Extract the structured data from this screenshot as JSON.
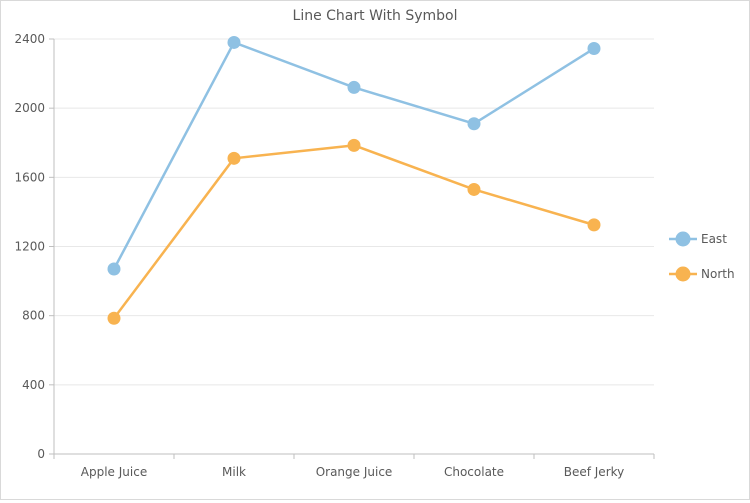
{
  "chart_data": {
    "type": "line",
    "title": "Line Chart With Symbol",
    "xlabel": "",
    "ylabel": "",
    "categories": [
      "Apple Juice",
      "Milk",
      "Orange Juice",
      "Chocolate",
      "Beef Jerky"
    ],
    "series": [
      {
        "name": "East",
        "color": "#8fc1e3",
        "values": [
          1070,
          2380,
          2120,
          1910,
          2345
        ]
      },
      {
        "name": "North",
        "color": "#f8b350",
        "values": [
          785,
          1710,
          1785,
          1530,
          1325
        ]
      }
    ],
    "ylim": [
      0,
      2400
    ],
    "yticks": [
      0,
      400,
      800,
      1200,
      1600,
      2000,
      2400
    ],
    "grid": true,
    "legend": "right",
    "marker": "circle"
  }
}
